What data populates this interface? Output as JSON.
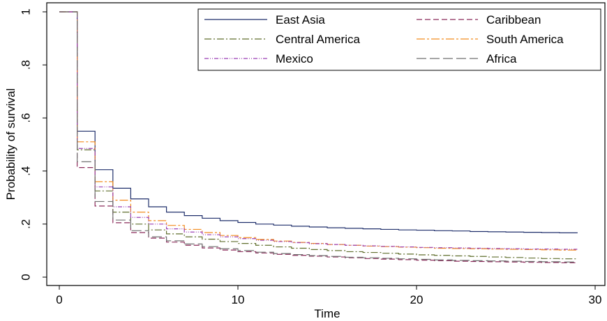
{
  "chart_data": {
    "type": "line",
    "step": true,
    "xlabel": "Time",
    "ylabel": "Probability of survival",
    "xlim": [
      0,
      30
    ],
    "ylim": [
      0,
      1
    ],
    "xticks": [
      0,
      10,
      20,
      30
    ],
    "yticks": [
      0,
      0.2,
      0.4,
      0.6,
      0.8,
      1
    ],
    "xtick_labels": [
      "0",
      "10",
      "20",
      "30"
    ],
    "ytick_labels": [
      "0",
      ".2",
      ".4",
      ".6",
      ".8",
      "1"
    ],
    "grid": false,
    "legend_position": "top-right",
    "x": [
      0,
      1,
      2,
      3,
      4,
      5,
      6,
      7,
      8,
      9,
      10,
      11,
      12,
      13,
      14,
      15,
      16,
      17,
      18,
      19,
      20,
      21,
      22,
      23,
      24,
      25,
      26,
      27,
      28,
      29
    ],
    "series": [
      {
        "name": "East Asia",
        "color": "#1f2f6b",
        "dash": "",
        "values": [
          1.0,
          0.55,
          0.405,
          0.335,
          0.295,
          0.265,
          0.245,
          0.232,
          0.222,
          0.213,
          0.206,
          0.2,
          0.196,
          0.192,
          0.189,
          0.186,
          0.184,
          0.182,
          0.18,
          0.178,
          0.177,
          0.175,
          0.174,
          0.172,
          0.171,
          0.17,
          0.169,
          0.168,
          0.167,
          0.166
        ]
      },
      {
        "name": "Caribbean",
        "color": "#8b2a5a",
        "dash": "8,4",
        "values": [
          1.0,
          0.413,
          0.268,
          0.205,
          0.168,
          0.147,
          0.132,
          0.12,
          0.11,
          0.102,
          0.096,
          0.091,
          0.086,
          0.082,
          0.079,
          0.076,
          0.073,
          0.07,
          0.068,
          0.066,
          0.064,
          0.062,
          0.06,
          0.059,
          0.058,
          0.057,
          0.056,
          0.055,
          0.054,
          0.053
        ]
      },
      {
        "name": "Central America",
        "color": "#5f6e2c",
        "dash": "10,3,2,3",
        "values": [
          1.0,
          0.48,
          0.325,
          0.245,
          0.2,
          0.178,
          0.163,
          0.152,
          0.143,
          0.134,
          0.127,
          0.12,
          0.114,
          0.109,
          0.104,
          0.1,
          0.096,
          0.093,
          0.09,
          0.087,
          0.084,
          0.082,
          0.08,
          0.078,
          0.076,
          0.074,
          0.072,
          0.07,
          0.069,
          0.068
        ]
      },
      {
        "name": "South America",
        "color": "#f28c1e",
        "dash": "12,3,3,3",
        "values": [
          1.0,
          0.51,
          0.36,
          0.29,
          0.245,
          0.213,
          0.195,
          0.18,
          0.168,
          0.157,
          0.149,
          0.142,
          0.136,
          0.131,
          0.127,
          0.123,
          0.12,
          0.117,
          0.115,
          0.113,
          0.111,
          0.109,
          0.108,
          0.107,
          0.106,
          0.105,
          0.104,
          0.103,
          0.102,
          0.101
        ]
      },
      {
        "name": "Mexico",
        "color": "#9b3fb5",
        "dash": "6,2,1,2,1,2",
        "values": [
          1.0,
          0.485,
          0.34,
          0.265,
          0.225,
          0.2,
          0.182,
          0.17,
          0.16,
          0.152,
          0.145,
          0.139,
          0.134,
          0.13,
          0.126,
          0.123,
          0.12,
          0.118,
          0.116,
          0.114,
          0.112,
          0.111,
          0.11,
          0.109,
          0.108,
          0.107,
          0.106,
          0.106,
          0.105,
          0.105
        ]
      },
      {
        "name": "Africa",
        "color": "#707070",
        "dash": "14,5",
        "values": [
          1.0,
          0.435,
          0.285,
          0.215,
          0.175,
          0.152,
          0.137,
          0.125,
          0.115,
          0.107,
          0.1,
          0.094,
          0.089,
          0.085,
          0.081,
          0.078,
          0.075,
          0.073,
          0.071,
          0.069,
          0.067,
          0.065,
          0.063,
          0.062,
          0.061,
          0.06,
          0.059,
          0.058,
          0.057,
          0.056
        ]
      }
    ]
  }
}
